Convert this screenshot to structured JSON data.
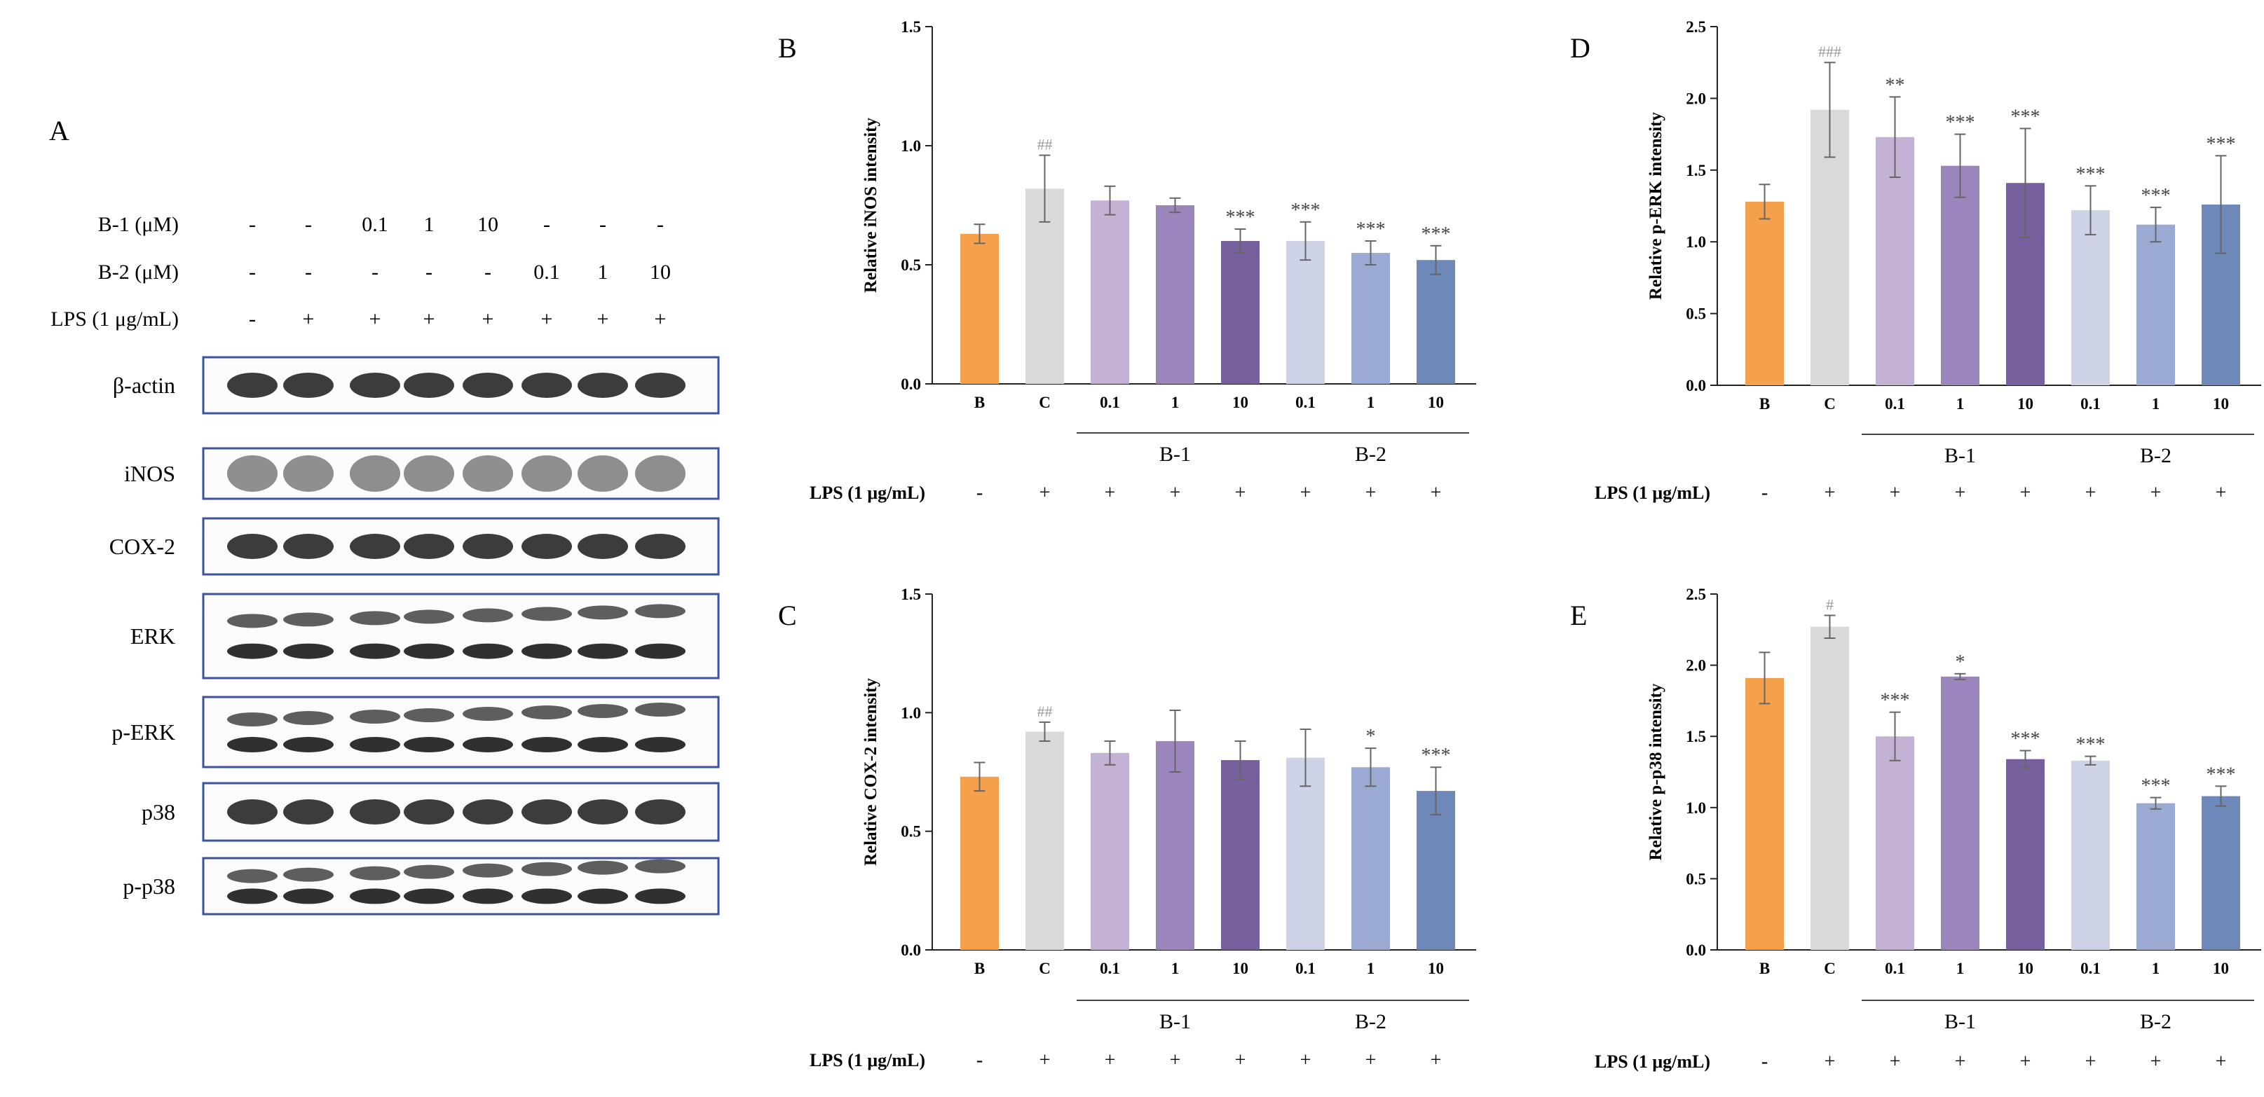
{
  "panel_a": {
    "label": "A",
    "row_labels": {
      "b1": "B-1 (μM)",
      "b2": "B-2 (μM)",
      "lps": "LPS (1 μg/mL)"
    },
    "b1_values": [
      "-",
      "-",
      "0.1",
      "1",
      "10",
      "-",
      "-",
      "-"
    ],
    "b2_values": [
      "-",
      "-",
      "-",
      "-",
      "-",
      "0.1",
      "1",
      "10"
    ],
    "lps_values": [
      "-",
      "+",
      "+",
      "+",
      "+",
      "+",
      "+",
      "+"
    ],
    "blots": [
      {
        "name": "β-actin",
        "bands": 1
      },
      {
        "name": "iNOS",
        "bands": 1
      },
      {
        "name": "COX-2",
        "bands": 1
      },
      {
        "name": "ERK",
        "bands": 2
      },
      {
        "name": "p-ERK",
        "bands": 2
      },
      {
        "name": "p38",
        "bands": 1
      },
      {
        "name": "p-p38",
        "bands": 2
      }
    ]
  },
  "colors": [
    "#f5a04a",
    "#d9d9d9",
    "#c3b2d3",
    "#9a86bd",
    "#76609e",
    "#cfd3e6",
    "#9aaad2",
    "#6e88ba"
  ],
  "shared": {
    "categories": [
      "B",
      "C",
      "0.1",
      "1",
      "10",
      "0.1",
      "1",
      "10"
    ],
    "group_labels": [
      "B-1",
      "B-2"
    ],
    "lps_label": "LPS (1 μg/mL)",
    "lps_values": [
      "-",
      "+",
      "+",
      "+",
      "+",
      "+",
      "+",
      "+"
    ]
  },
  "chart_data": [
    {
      "panel": "B",
      "type": "bar",
      "ylabel": "Relative iNOS intensity",
      "ylim": [
        0,
        1.5
      ],
      "yticks": [
        "0.0",
        "0.5",
        "1.0",
        "1.5"
      ],
      "tick_values": [
        0,
        0.5,
        1.0,
        1.5
      ],
      "values": [
        0.63,
        0.82,
        0.77,
        0.75,
        0.6,
        0.6,
        0.55,
        0.52
      ],
      "errors": [
        0.04,
        0.14,
        0.06,
        0.03,
        0.05,
        0.08,
        0.05,
        0.06
      ],
      "annotations": [
        "",
        "##",
        "",
        "",
        "***",
        "***",
        "***",
        "***"
      ]
    },
    {
      "panel": "C",
      "type": "bar",
      "ylabel": "Relative COX-2 intensity",
      "ylim": [
        0,
        1.5
      ],
      "yticks": [
        "0.0",
        "0.5",
        "1.0",
        "1.5"
      ],
      "tick_values": [
        0,
        0.5,
        1.0,
        1.5
      ],
      "values": [
        0.73,
        0.92,
        0.83,
        0.88,
        0.8,
        0.81,
        0.77,
        0.67
      ],
      "errors": [
        0.06,
        0.04,
        0.05,
        0.13,
        0.08,
        0.12,
        0.08,
        0.1
      ],
      "annotations": [
        "",
        "##",
        "",
        "",
        "",
        "",
        "*",
        "***"
      ]
    },
    {
      "panel": "D",
      "type": "bar",
      "ylabel": "Relative p-ERK intensity",
      "ylim": [
        0,
        2.5
      ],
      "yticks": [
        "0.0",
        "0.5",
        "1.0",
        "1.5",
        "2.0",
        "2.5"
      ],
      "tick_values": [
        0,
        0.5,
        1.0,
        1.5,
        2.0,
        2.5
      ],
      "values": [
        1.28,
        1.92,
        1.73,
        1.53,
        1.41,
        1.22,
        1.12,
        1.26
      ],
      "errors": [
        0.12,
        0.33,
        0.28,
        0.22,
        0.38,
        0.17,
        0.12,
        0.34
      ],
      "annotations": [
        "",
        "###",
        "**",
        "***",
        "***",
        "***",
        "***",
        "***"
      ]
    },
    {
      "panel": "E",
      "type": "bar",
      "ylabel": "Relative p-p38 intensity",
      "ylim": [
        0,
        2.5
      ],
      "yticks": [
        "0.0",
        "0.5",
        "1.0",
        "1.5",
        "2.0",
        "2.5"
      ],
      "tick_values": [
        0,
        0.5,
        1.0,
        1.5,
        2.0,
        2.5
      ],
      "values": [
        1.91,
        2.27,
        1.5,
        1.92,
        1.34,
        1.33,
        1.03,
        1.08
      ],
      "errors": [
        0.18,
        0.08,
        0.17,
        0.02,
        0.06,
        0.03,
        0.04,
        0.07
      ],
      "annotations": [
        "",
        "#",
        "***",
        "*",
        "***",
        "***",
        "***",
        "***"
      ]
    }
  ]
}
